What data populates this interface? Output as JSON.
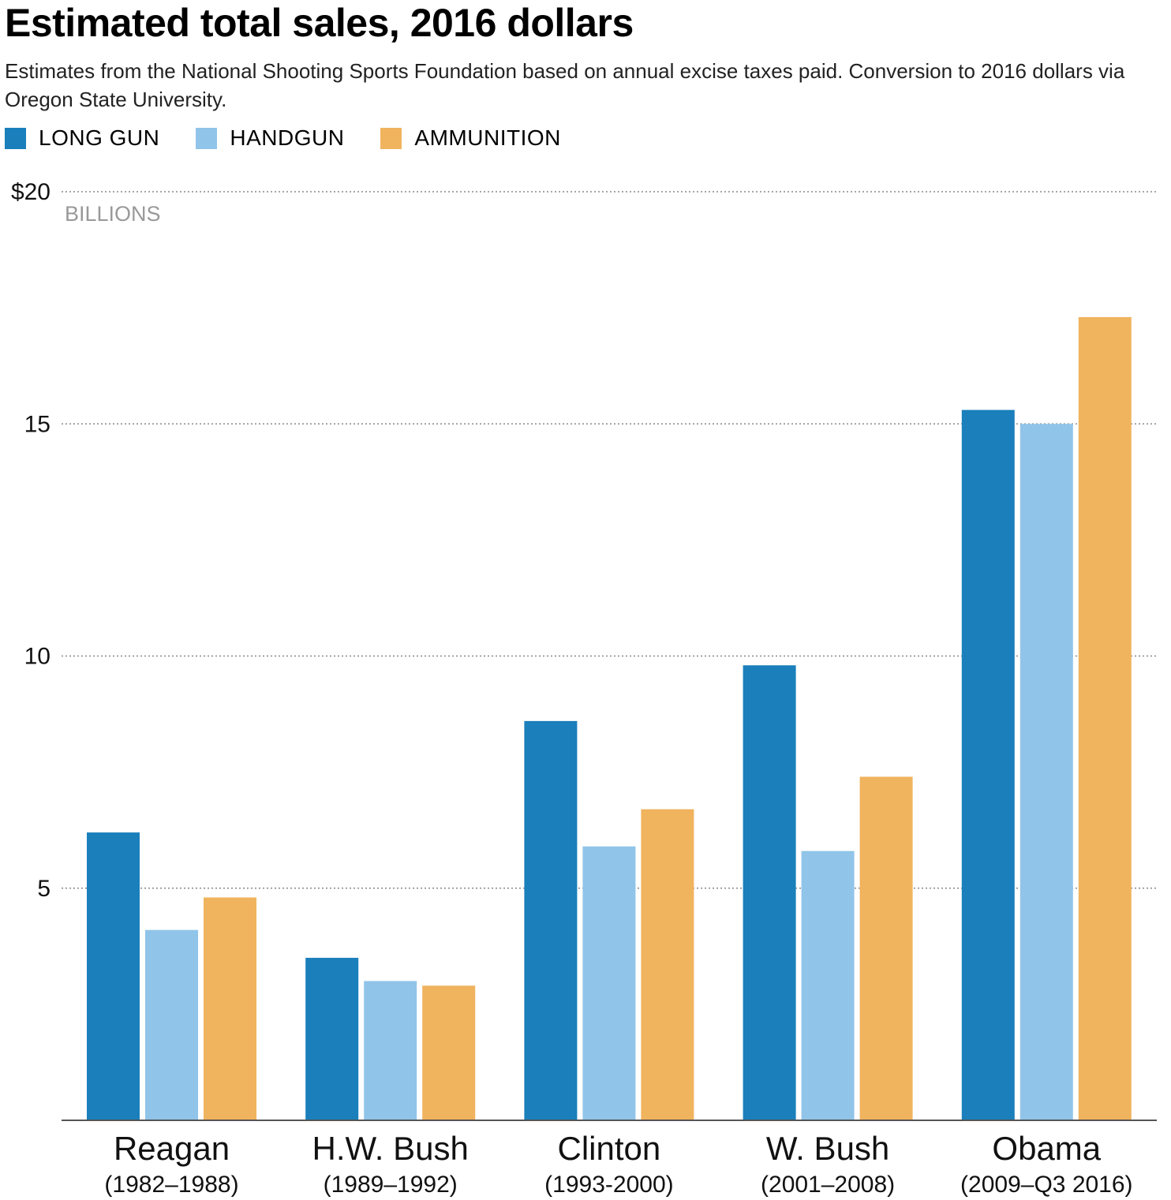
{
  "chart_data": {
    "type": "bar",
    "title": "Estimated total sales, 2016 dollars",
    "subtitle": "Estimates from the National Shooting Sports Foundation based on annual excise taxes paid. Conversion to 2016 dollars via Oregon State University.",
    "unit_label": "BILLIONS",
    "ylim": [
      0,
      20
    ],
    "yticks": [
      {
        "value": 20,
        "label": "$20"
      },
      {
        "value": 15,
        "label": "15"
      },
      {
        "value": 10,
        "label": "10"
      },
      {
        "value": 5,
        "label": "5"
      }
    ],
    "grid": "dotted horizontal",
    "legend_position": "top-left",
    "categories": [
      {
        "name": "Reagan",
        "years": "(1982–1988)"
      },
      {
        "name": "H.W. Bush",
        "years": "(1989–1992)"
      },
      {
        "name": "Clinton",
        "years": "(1993-2000)"
      },
      {
        "name": "W. Bush",
        "years": "(2001–2008)"
      },
      {
        "name": "Obama",
        "years": "(2009–Q3 2016)"
      }
    ],
    "series": [
      {
        "name": "LONG GUN",
        "color": "#1a7fbb",
        "values": [
          6.2,
          3.5,
          8.6,
          9.8,
          15.3
        ]
      },
      {
        "name": "HANDGUN",
        "color": "#91c4e9",
        "values": [
          4.1,
          3.0,
          5.9,
          5.8,
          15.0
        ]
      },
      {
        "name": "AMMUNITION",
        "color": "#f0b35e",
        "values": [
          4.8,
          2.9,
          6.7,
          7.4,
          17.3
        ]
      }
    ]
  }
}
